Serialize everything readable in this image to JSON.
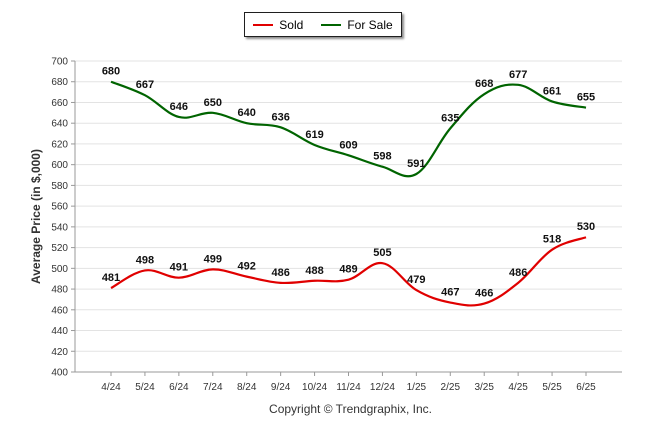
{
  "chart_data": {
    "type": "line",
    "title": "",
    "xlabel": "",
    "ylabel": "Average Price (in $,000)",
    "categories": [
      "4/24",
      "5/24",
      "6/24",
      "7/24",
      "8/24",
      "9/24",
      "10/24",
      "11/24",
      "12/24",
      "1/25",
      "2/25",
      "3/25",
      "4/25",
      "5/25",
      "6/25"
    ],
    "series": [
      {
        "name": "Sold",
        "color": "#e00000",
        "values": [
          481,
          498,
          491,
          499,
          492,
          486,
          488,
          489,
          505,
          479,
          467,
          466,
          486,
          518,
          530
        ]
      },
      {
        "name": "For Sale",
        "color": "#006400",
        "values": [
          680,
          667,
          646,
          650,
          640,
          636,
          619,
          609,
          598,
          591,
          635,
          668,
          677,
          661,
          655
        ]
      }
    ],
    "ylim": [
      400,
      700
    ],
    "yticks": [
      400,
      420,
      440,
      460,
      480,
      500,
      520,
      540,
      560,
      580,
      600,
      620,
      640,
      660,
      680,
      700
    ],
    "grid": true,
    "legend_position": "top-center"
  },
  "footer": {
    "copyright": "Copyright © Trendgraphix, Inc."
  }
}
